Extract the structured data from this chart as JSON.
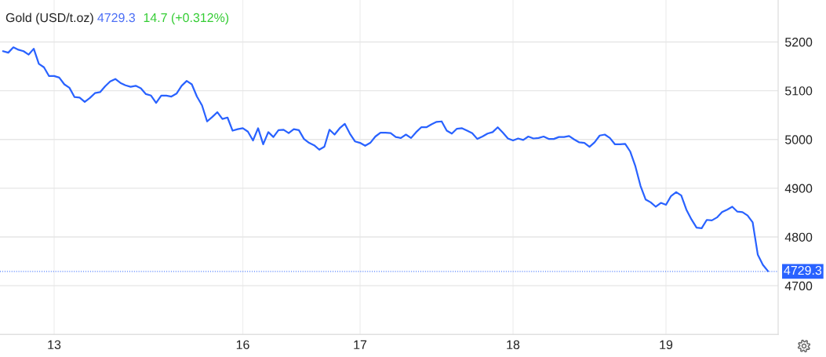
{
  "chart_data": {
    "type": "line",
    "title": "Gold (USD/t.oz)",
    "annotations": [
      "4729.3",
      "14.7 (+0.312%)"
    ],
    "categories": [
      null,
      null,
      null,
      null,
      null,
      null,
      null,
      null,
      null,
      null,
      "13",
      null,
      null,
      null,
      null,
      null,
      null,
      null,
      null,
      null,
      null,
      null,
      null,
      null,
      null,
      null,
      null,
      null,
      null,
      null,
      null,
      null,
      null,
      null,
      null,
      null,
      null,
      null,
      null,
      null,
      null,
      null,
      null,
      null,
      null,
      null,
      null,
      "16",
      null,
      null,
      null,
      null,
      null,
      null,
      null,
      null,
      null,
      null,
      null,
      null,
      null,
      null,
      null,
      null,
      null,
      null,
      null,
      null,
      null,
      null,
      "17",
      null,
      null,
      null,
      null,
      null,
      null,
      null,
      null,
      null,
      null,
      null,
      null,
      null,
      null,
      null,
      null,
      null,
      null,
      null,
      null,
      null,
      null,
      null,
      null,
      null,
      null,
      null,
      null,
      null,
      "18",
      null,
      null,
      null,
      null,
      null,
      null,
      null,
      null,
      null,
      null,
      null,
      null,
      null,
      null,
      null,
      null,
      null,
      null,
      null,
      null,
      null,
      null,
      null,
      null,
      null,
      null,
      null,
      null,
      null,
      "19",
      null,
      null,
      null,
      null,
      null,
      null,
      null,
      null,
      null,
      null,
      null,
      null,
      null,
      null,
      null,
      null,
      null,
      null,
      null,
      null
    ],
    "series": [
      {
        "color": "#2962ff",
        "values": [
          5181,
          5178,
          5189,
          5184,
          5181,
          5174,
          5186,
          5155,
          5148,
          5130,
          5130,
          5127,
          5113,
          5106,
          5087,
          5086,
          5077,
          5085,
          5095,
          5097,
          5109,
          5119,
          5124,
          5116,
          5111,
          5108,
          5110,
          5105,
          5093,
          5090,
          5075,
          5090,
          5090,
          5088,
          5094,
          5110,
          5120,
          5113,
          5088,
          5070,
          5037,
          5046,
          5056,
          5042,
          5045,
          5018,
          5021,
          5023,
          5016,
          4998,
          5023,
          4990,
          5015,
          5005,
          5019,
          5020,
          5013,
          5021,
          5019,
          5001,
          4993,
          4988,
          4979,
          4985,
          5020,
          5010,
          5023,
          5032,
          5012,
          4996,
          4993,
          4987,
          4993,
          5006,
          5014,
          5014,
          5013,
          5005,
          5003,
          5010,
          5003,
          5015,
          5025,
          5025,
          5031,
          5036,
          5037,
          5018,
          5012,
          5022,
          5023,
          5018,
          5013,
          5001,
          5006,
          5012,
          5015,
          5025,
          5014,
          5002,
          4998,
          5002,
          4999,
          5006,
          5002,
          5003,
          5006,
          5001,
          5001,
          5005,
          5005,
          5007,
          5000,
          4994,
          4993,
          4985,
          4994,
          5008,
          5010,
          5003,
          4990,
          4990,
          4991,
          4975,
          4945,
          4905,
          4877,
          4871,
          4862,
          4870,
          4866,
          4884,
          4892,
          4885,
          4856,
          4836,
          4819,
          4818,
          4835,
          4834,
          4840,
          4851,
          4856,
          4862,
          4852,
          4851,
          4844,
          4830,
          4764,
          4743,
          4730
        ]
      }
    ],
    "ylim": [
      4600,
      5286
    ],
    "yticks": [
      4700,
      4800,
      4900,
      5000,
      5100,
      5200
    ],
    "grid": true,
    "marker": "none",
    "line_style": "solid",
    "ref_lines": [
      {
        "axis": "y",
        "value": 4729.3,
        "label": "4729.3",
        "color": "#2962ff",
        "line_style": "dotted"
      }
    ]
  }
}
